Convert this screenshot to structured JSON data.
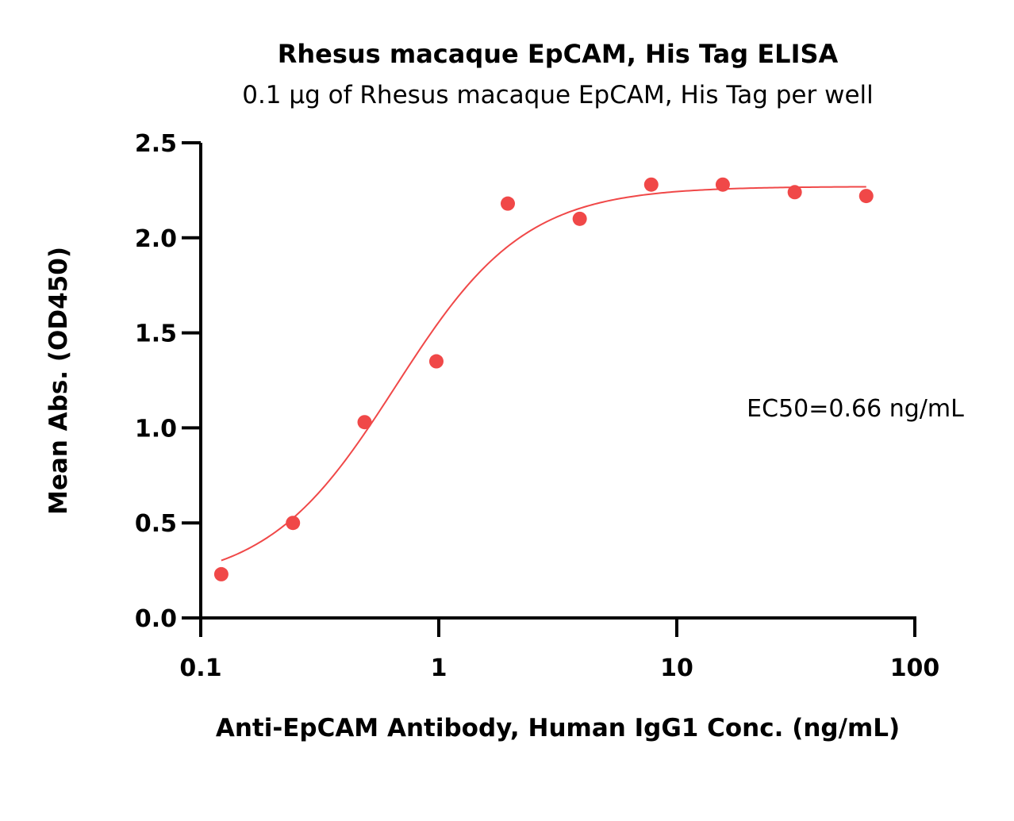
{
  "chart_data": {
    "type": "scatter",
    "title": "Rhesus macaque EpCAM, His Tag ELISA",
    "subtitle": "0.1 µg of Rhesus macaque EpCAM, His Tag per well",
    "xlabel": "Anti-EpCAM Antibody, Human IgG1 Conc. (ng/mL)",
    "ylabel": "Mean Abs. (OD450)",
    "x_scale": "log",
    "xlim": [
      0.1,
      100
    ],
    "ylim": [
      0.0,
      2.5
    ],
    "x_ticks": [
      {
        "value": 0.1,
        "label": "0.1"
      },
      {
        "value": 1,
        "label": "1"
      },
      {
        "value": 10,
        "label": "10"
      },
      {
        "value": 100,
        "label": "100"
      }
    ],
    "y_ticks": [
      {
        "value": 0.0,
        "label": "0.0"
      },
      {
        "value": 0.5,
        "label": "0.5"
      },
      {
        "value": 1.0,
        "label": "1.0"
      },
      {
        "value": 1.5,
        "label": "1.5"
      },
      {
        "value": 2.0,
        "label": "2.0"
      },
      {
        "value": 2.5,
        "label": "2.5"
      }
    ],
    "grid": false,
    "series": [
      {
        "color": "#f04848",
        "marker": "circle",
        "points": [
          {
            "x": 0.122,
            "y": 0.23
          },
          {
            "x": 0.244,
            "y": 0.5
          },
          {
            "x": 0.488,
            "y": 1.03
          },
          {
            "x": 0.977,
            "y": 1.35
          },
          {
            "x": 1.95,
            "y": 2.18
          },
          {
            "x": 3.91,
            "y": 2.1
          },
          {
            "x": 7.81,
            "y": 2.28
          },
          {
            "x": 15.6,
            "y": 2.28
          },
          {
            "x": 31.3,
            "y": 2.24
          },
          {
            "x": 62.5,
            "y": 2.22
          }
        ],
        "fit": {
          "model": "4PL",
          "bottom": 0.17,
          "top": 2.27,
          "ec50": 0.66,
          "hill": 1.6,
          "x_range": [
            0.122,
            62.5
          ]
        }
      }
    ],
    "annotations": [
      {
        "text": "EC50=0.66 ng/mL"
      }
    ]
  }
}
